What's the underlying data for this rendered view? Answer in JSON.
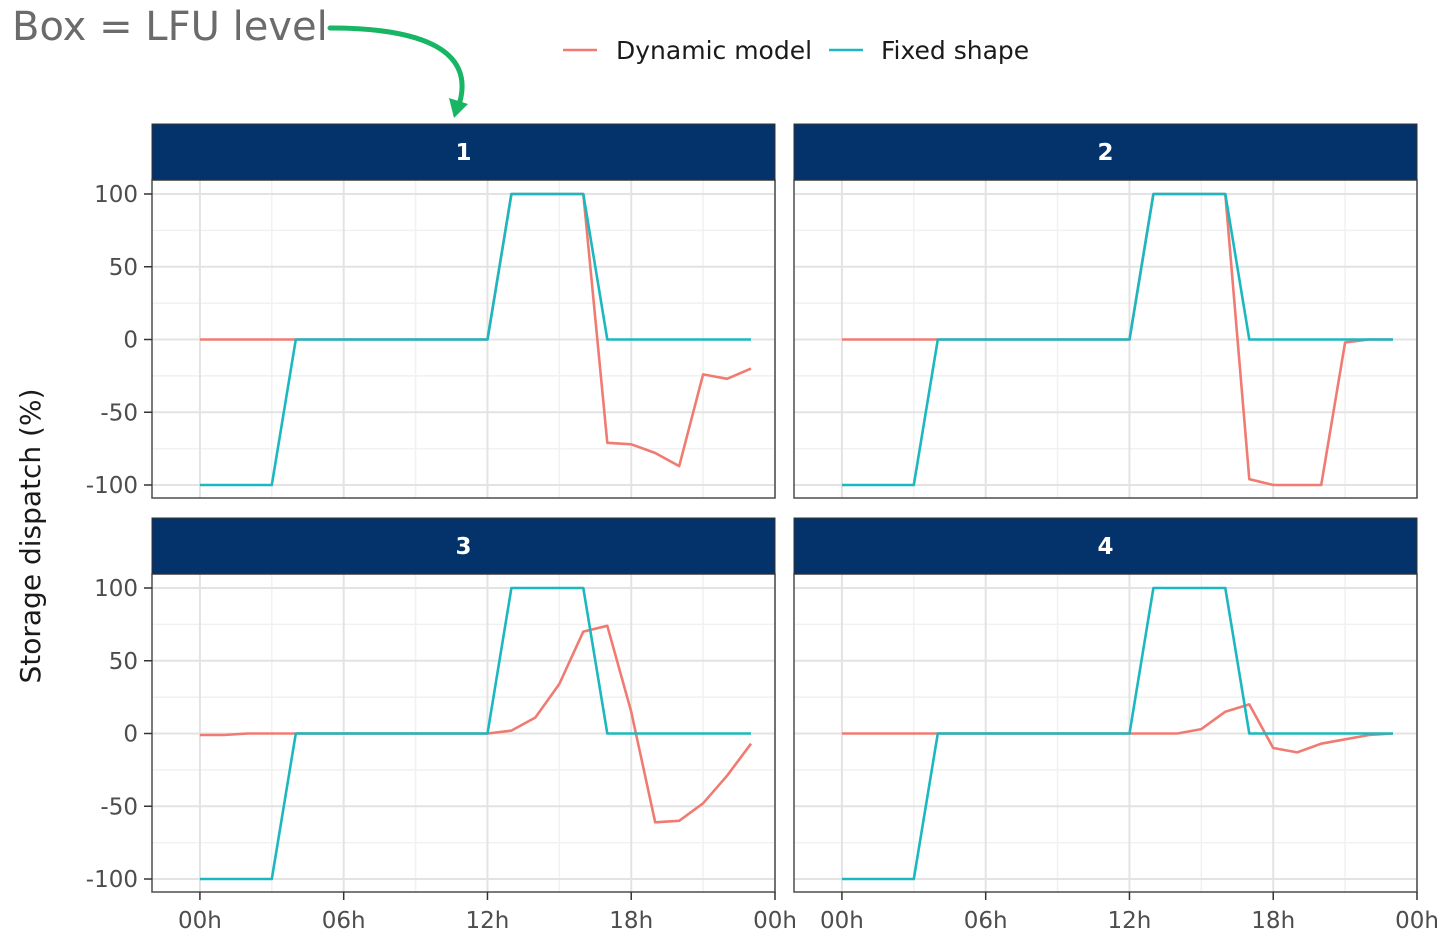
{
  "annotation": {
    "text": "Box = LFU level",
    "arrow_color": "#17b564"
  },
  "chart_data": {
    "type": "line",
    "ylabel": "Storage dispatch (%)",
    "xlabel": "",
    "ylim": [
      -100,
      100
    ],
    "yticks": [
      100,
      50,
      0,
      -50,
      -100
    ],
    "xlim_hours": [
      -2,
      24
    ],
    "xticks": [
      0,
      6,
      12,
      18,
      24
    ],
    "xtick_labels": [
      "00h",
      "06h",
      "12h",
      "18h",
      "00h"
    ],
    "grid": true,
    "legend": {
      "position": "top"
    },
    "colors": {
      "Dynamic model": "#f07b72",
      "Fixed shape": "#1cb8bf",
      "strip": "#03336a"
    },
    "panels": [
      {
        "label": "1",
        "series": [
          {
            "name": "Dynamic model",
            "x": [
              0,
              1,
              2,
              3,
              4,
              5,
              6,
              7,
              8,
              9,
              10,
              11,
              12,
              13,
              14,
              15,
              16,
              17,
              18,
              19,
              20,
              21,
              22,
              23
            ],
            "y": [
              0,
              0,
              0,
              0,
              0,
              0,
              0,
              0,
              0,
              0,
              0,
              0,
              0,
              100,
              100,
              100,
              100,
              -71,
              -72,
              -78,
              -87,
              -24,
              -27,
              -20
            ]
          },
          {
            "name": "Fixed shape",
            "x": [
              0,
              1,
              2,
              3,
              4,
              5,
              6,
              7,
              8,
              9,
              10,
              11,
              12,
              13,
              14,
              15,
              16,
              17,
              18,
              19,
              20,
              21,
              22,
              23
            ],
            "y": [
              -100,
              -100,
              -100,
              -100,
              0,
              0,
              0,
              0,
              0,
              0,
              0,
              0,
              0,
              100,
              100,
              100,
              100,
              0,
              0,
              0,
              0,
              0,
              0,
              0
            ]
          }
        ]
      },
      {
        "label": "2",
        "series": [
          {
            "name": "Dynamic model",
            "x": [
              0,
              1,
              2,
              3,
              4,
              5,
              6,
              7,
              8,
              9,
              10,
              11,
              12,
              13,
              14,
              15,
              16,
              17,
              18,
              19,
              20,
              21,
              22,
              23
            ],
            "y": [
              0,
              0,
              0,
              0,
              0,
              0,
              0,
              0,
              0,
              0,
              0,
              0,
              0,
              100,
              100,
              100,
              100,
              -96,
              -100,
              -100,
              -100,
              -2,
              0,
              0
            ]
          },
          {
            "name": "Fixed shape",
            "x": [
              0,
              1,
              2,
              3,
              4,
              5,
              6,
              7,
              8,
              9,
              10,
              11,
              12,
              13,
              14,
              15,
              16,
              17,
              18,
              19,
              20,
              21,
              22,
              23
            ],
            "y": [
              -100,
              -100,
              -100,
              -100,
              0,
              0,
              0,
              0,
              0,
              0,
              0,
              0,
              0,
              100,
              100,
              100,
              100,
              0,
              0,
              0,
              0,
              0,
              0,
              0
            ]
          }
        ]
      },
      {
        "label": "3",
        "series": [
          {
            "name": "Dynamic model",
            "x": [
              0,
              1,
              2,
              3,
              4,
              5,
              6,
              7,
              8,
              9,
              10,
              11,
              12,
              13,
              14,
              15,
              16,
              17,
              18,
              19,
              20,
              21,
              22,
              23
            ],
            "y": [
              -1,
              -1,
              0,
              0,
              0,
              0,
              0,
              0,
              0,
              0,
              0,
              0,
              0,
              2,
              11,
              34,
              70,
              74,
              15,
              -61,
              -60,
              -48,
              -29,
              -7
            ]
          },
          {
            "name": "Fixed shape",
            "x": [
              0,
              1,
              2,
              3,
              4,
              5,
              6,
              7,
              8,
              9,
              10,
              11,
              12,
              13,
              14,
              15,
              16,
              17,
              18,
              19,
              20,
              21,
              22,
              23
            ],
            "y": [
              -100,
              -100,
              -100,
              -100,
              0,
              0,
              0,
              0,
              0,
              0,
              0,
              0,
              0,
              100,
              100,
              100,
              100,
              0,
              0,
              0,
              0,
              0,
              0,
              0
            ]
          }
        ]
      },
      {
        "label": "4",
        "series": [
          {
            "name": "Dynamic model",
            "x": [
              0,
              1,
              2,
              3,
              4,
              5,
              6,
              7,
              8,
              9,
              10,
              11,
              12,
              13,
              14,
              15,
              16,
              17,
              18,
              19,
              20,
              21,
              22,
              23
            ],
            "y": [
              0,
              0,
              0,
              0,
              0,
              0,
              0,
              0,
              0,
              0,
              0,
              0,
              0,
              0,
              0,
              3,
              15,
              20,
              -10,
              -13,
              -7,
              -4,
              -1,
              0
            ]
          },
          {
            "name": "Fixed shape",
            "x": [
              0,
              1,
              2,
              3,
              4,
              5,
              6,
              7,
              8,
              9,
              10,
              11,
              12,
              13,
              14,
              15,
              16,
              17,
              18,
              19,
              20,
              21,
              22,
              23
            ],
            "y": [
              -100,
              -100,
              -100,
              -100,
              0,
              0,
              0,
              0,
              0,
              0,
              0,
              0,
              0,
              100,
              100,
              100,
              100,
              0,
              0,
              0,
              0,
              0,
              0,
              0
            ]
          }
        ]
      }
    ]
  }
}
